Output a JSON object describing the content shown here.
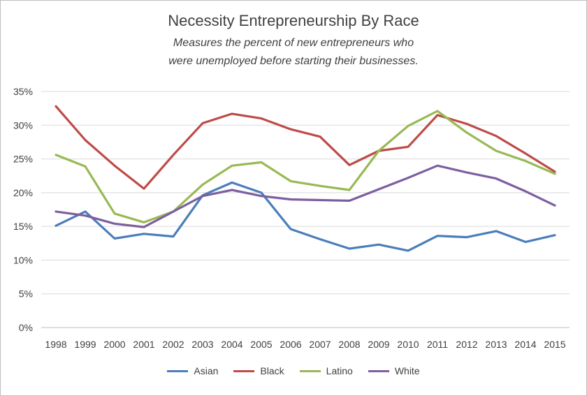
{
  "chart_data": {
    "type": "line",
    "title": "Necessity Entrepreneurship By Race",
    "subtitle": [
      "Measures the percent of new entrepreneurs who",
      "were unemployed before starting their businesses."
    ],
    "xlabel": "",
    "ylabel": "",
    "categories": [
      "1998",
      "1999",
      "2000",
      "2001",
      "2002",
      "2003",
      "2004",
      "2005",
      "2006",
      "2007",
      "2008",
      "2009",
      "2010",
      "2011",
      "2012",
      "2013",
      "2014",
      "2015"
    ],
    "ylim": [
      0,
      35
    ],
    "yticks": [
      0,
      5,
      10,
      15,
      20,
      25,
      30,
      35
    ],
    "ytick_labels": [
      "0%",
      "5%",
      "10%",
      "15%",
      "20%",
      "25%",
      "30%",
      "35%"
    ],
    "grid": true,
    "legend_position": "bottom",
    "series": [
      {
        "name": "Asian",
        "color": "#4a7ebb",
        "values": [
          15.1,
          17.2,
          13.2,
          13.9,
          13.5,
          19.6,
          21.5,
          20.0,
          14.6,
          13.1,
          11.7,
          12.3,
          11.4,
          13.6,
          13.4,
          14.3,
          12.7,
          13.7
        ]
      },
      {
        "name": "Black",
        "color": "#be4b48",
        "values": [
          32.8,
          27.8,
          24.0,
          20.6,
          25.6,
          30.3,
          31.7,
          31.0,
          29.4,
          28.3,
          24.1,
          26.2,
          26.8,
          31.5,
          30.2,
          28.4,
          25.8,
          23.1
        ]
      },
      {
        "name": "Latino",
        "color": "#98b954",
        "values": [
          25.6,
          23.9,
          16.9,
          15.6,
          17.2,
          21.2,
          24.0,
          24.5,
          21.7,
          21.0,
          20.4,
          26.2,
          29.9,
          32.1,
          28.9,
          26.2,
          24.7,
          22.8
        ]
      },
      {
        "name": "White",
        "color": "#7d5fa0",
        "values": [
          17.2,
          16.6,
          15.4,
          14.9,
          17.2,
          19.5,
          20.4,
          19.5,
          19.0,
          18.9,
          18.8,
          20.5,
          22.2,
          24.0,
          23.0,
          22.1,
          20.2,
          18.1
        ]
      }
    ]
  }
}
